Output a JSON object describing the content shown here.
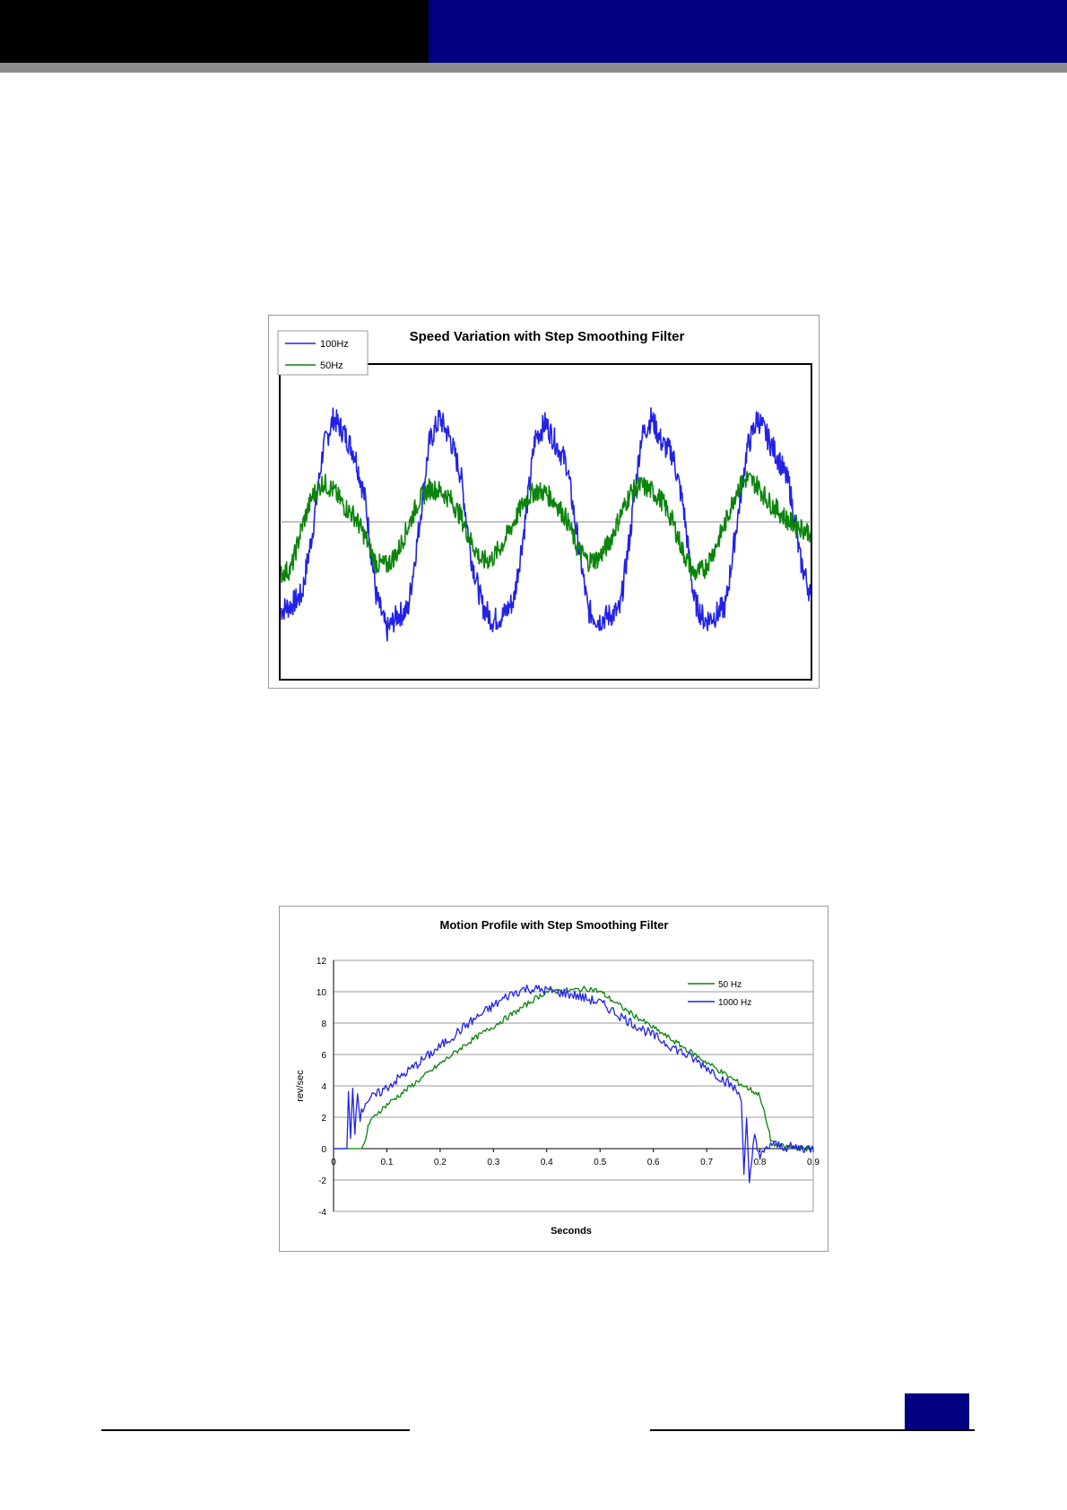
{
  "colors": {
    "header_black": "#000000",
    "header_navy": "#000080",
    "header_rule": "#8c8c8c",
    "blue_series": "#2222e6",
    "green_series": "#0b840b",
    "footer_box": "#000080"
  },
  "chart_data": [
    {
      "type": "line",
      "title": "Speed Variation with Step Smoothing Filter",
      "xlabel": "",
      "ylabel": "",
      "axes_labels_shown": false,
      "x_range": [
        0,
        5
      ],
      "ylim": [
        -1.5,
        1.5
      ],
      "reference_line_y": 0,
      "grid": false,
      "legend_position": "top-left",
      "series": [
        {
          "name": "100Hz",
          "color": "#2222e6",
          "x": [
            0.0,
            0.1,
            0.2,
            0.3,
            0.4,
            0.5,
            0.6,
            0.7,
            0.8,
            0.9,
            1.0,
            1.1,
            1.2,
            1.3,
            1.4,
            1.5,
            1.6,
            1.7,
            1.8,
            1.9,
            2.0,
            2.1,
            2.2,
            2.3,
            2.4,
            2.5,
            2.6,
            2.7,
            2.8,
            2.9,
            3.0,
            3.1,
            3.2,
            3.3,
            3.4,
            3.5,
            3.6,
            3.7,
            3.8,
            3.9,
            4.0,
            4.1,
            4.2,
            4.3,
            4.4,
            4.5,
            4.6,
            4.7,
            4.8,
            4.9,
            5.0
          ],
          "values": [
            -0.85,
            -0.8,
            -0.7,
            -0.1,
            0.7,
            1.0,
            0.85,
            0.65,
            0.2,
            -0.7,
            -1.05,
            -0.9,
            -0.85,
            -0.1,
            0.75,
            1.0,
            0.8,
            0.45,
            -0.35,
            -0.8,
            -0.95,
            -0.9,
            -0.75,
            -0.05,
            0.8,
            0.95,
            0.75,
            0.55,
            -0.15,
            -0.85,
            -0.95,
            -0.9,
            -0.85,
            -0.1,
            0.8,
            1.0,
            0.75,
            0.65,
            0.15,
            -0.75,
            -0.95,
            -0.9,
            -0.8,
            -0.05,
            0.7,
            1.0,
            0.8,
            0.6,
            0.35,
            -0.35,
            -0.7
          ]
        },
        {
          "name": "50Hz",
          "color": "#0b840b",
          "x": [
            0.0,
            0.1,
            0.2,
            0.3,
            0.4,
            0.5,
            0.6,
            0.7,
            0.8,
            0.9,
            1.0,
            1.1,
            1.2,
            1.3,
            1.4,
            1.5,
            1.6,
            1.7,
            1.8,
            1.9,
            2.0,
            2.1,
            2.2,
            2.3,
            2.4,
            2.5,
            2.6,
            2.7,
            2.8,
            2.9,
            3.0,
            3.1,
            3.2,
            3.3,
            3.4,
            3.5,
            3.6,
            3.7,
            3.8,
            3.9,
            4.0,
            4.1,
            4.2,
            4.3,
            4.4,
            4.5,
            4.6,
            4.7,
            4.8,
            4.9,
            5.0
          ],
          "values": [
            -0.5,
            -0.45,
            -0.05,
            0.25,
            0.38,
            0.3,
            0.15,
            0.05,
            -0.15,
            -0.4,
            -0.42,
            -0.3,
            -0.05,
            0.2,
            0.32,
            0.3,
            0.22,
            0.05,
            -0.2,
            -0.38,
            -0.35,
            -0.2,
            0.0,
            0.2,
            0.3,
            0.28,
            0.18,
            0.02,
            -0.25,
            -0.38,
            -0.35,
            -0.2,
            0.05,
            0.28,
            0.35,
            0.3,
            0.2,
            0.0,
            -0.3,
            -0.5,
            -0.45,
            -0.25,
            0.0,
            0.3,
            0.42,
            0.35,
            0.2,
            0.1,
            0.0,
            -0.05,
            -0.1
          ]
        }
      ]
    },
    {
      "type": "line",
      "title": "Motion Profile with Step Smoothing Filter",
      "xlabel": "Seconds",
      "ylabel": "rev/sec",
      "xlim": [
        0,
        0.9
      ],
      "ylim": [
        -4,
        12
      ],
      "x_ticks": [
        "0",
        "0.1",
        "0.2",
        "0.3",
        "0.4",
        "0.5",
        "0.6",
        "0.7",
        "0.8",
        "0.9"
      ],
      "y_ticks": [
        "12",
        "10",
        "8",
        "6",
        "4",
        "2",
        "0",
        "-2",
        "-4"
      ],
      "grid": true,
      "legend_position": "top-right",
      "series": [
        {
          "name": "50 Hz",
          "color": "#0b840b",
          "x": [
            0.0,
            0.055,
            0.06,
            0.065,
            0.08,
            0.1,
            0.15,
            0.2,
            0.25,
            0.3,
            0.35,
            0.38,
            0.4,
            0.45,
            0.48,
            0.5,
            0.55,
            0.6,
            0.65,
            0.7,
            0.75,
            0.8,
            0.81,
            0.82,
            0.83,
            0.85,
            0.9
          ],
          "values": [
            0.0,
            0.0,
            0.5,
            1.5,
            2.2,
            2.8,
            4.1,
            5.4,
            6.7,
            7.8,
            8.9,
            9.6,
            10.0,
            10.1,
            10.2,
            10.0,
            8.8,
            7.7,
            6.6,
            5.5,
            4.4,
            3.4,
            2.0,
            0.6,
            0.2,
            0.1,
            0.0
          ]
        },
        {
          "name": "1000 Hz",
          "color": "#2222e6",
          "x": [
            0.0,
            0.025,
            0.028,
            0.032,
            0.036,
            0.04,
            0.045,
            0.05,
            0.06,
            0.08,
            0.1,
            0.15,
            0.2,
            0.25,
            0.3,
            0.33,
            0.36,
            0.4,
            0.45,
            0.5,
            0.55,
            0.6,
            0.65,
            0.7,
            0.75,
            0.765,
            0.77,
            0.775,
            0.78,
            0.79,
            0.8,
            0.82,
            0.85,
            0.9
          ],
          "values": [
            0.0,
            0.0,
            3.5,
            0.5,
            4.0,
            1.0,
            3.8,
            2.0,
            3.0,
            3.4,
            3.9,
            5.2,
            6.5,
            7.9,
            9.1,
            9.8,
            10.2,
            10.1,
            9.8,
            9.3,
            8.2,
            7.2,
            6.2,
            5.2,
            3.9,
            3.3,
            -1.5,
            1.8,
            -2.4,
            1.0,
            -0.6,
            0.3,
            0.1,
            0.0
          ]
        }
      ]
    }
  ]
}
